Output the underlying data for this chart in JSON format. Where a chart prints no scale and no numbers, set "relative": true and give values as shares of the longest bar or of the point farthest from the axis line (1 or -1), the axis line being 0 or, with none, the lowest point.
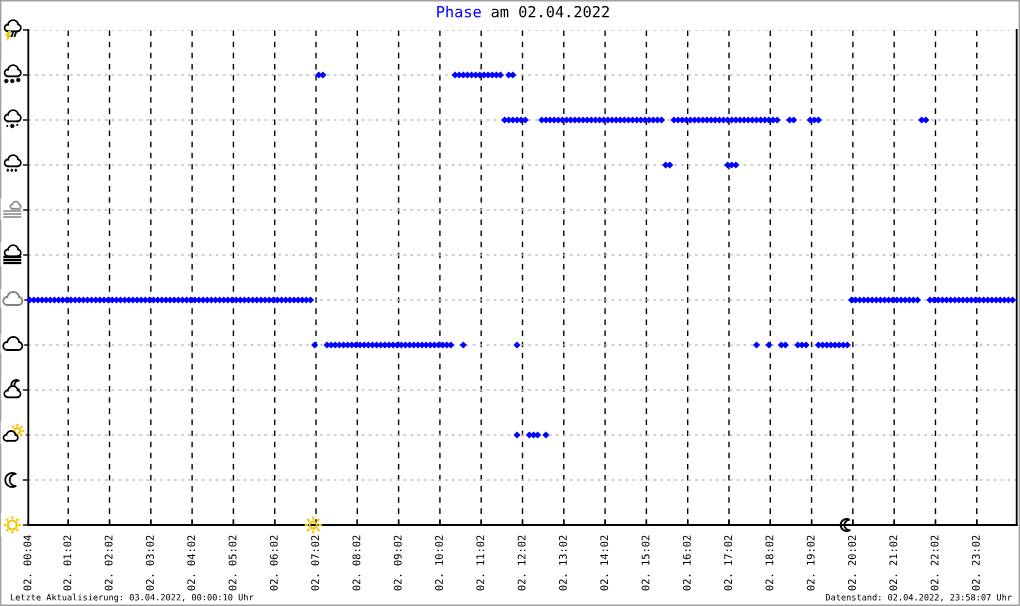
{
  "chart_data": {
    "type": "scatter",
    "title": "am 02.04.2022",
    "relative": true,
    "xlim": [
      "2022-04-02T00:04",
      "2022-04-03T00:00"
    ],
    "xticks": [
      {
        "value": "2022-04-02T00:04",
        "label": "02. 00:04"
      },
      {
        "value": "2022-04-02T01:02",
        "label": "02. 01:02"
      },
      {
        "value": "2022-04-02T02:02",
        "label": "02. 02:02"
      },
      {
        "value": "2022-04-02T03:02",
        "label": "02. 03:02"
      },
      {
        "value": "2022-04-02T04:02",
        "label": "02. 04:02"
      },
      {
        "value": "2022-04-02T05:02",
        "label": "02. 05:02"
      },
      {
        "value": "2022-04-02T06:02",
        "label": "02. 06:02"
      },
      {
        "value": "2022-04-02T07:02",
        "label": "02. 07:02"
      },
      {
        "value": "2022-04-02T08:02",
        "label": "02. 08:02"
      },
      {
        "value": "2022-04-02T09:02",
        "label": "02. 09:02"
      },
      {
        "value": "2022-04-02T10:02",
        "label": "02. 10:02"
      },
      {
        "value": "2022-04-02T11:02",
        "label": "02. 11:02"
      },
      {
        "value": "2022-04-02T12:02",
        "label": "02. 12:02"
      },
      {
        "value": "2022-04-02T13:02",
        "label": "02. 13:02"
      },
      {
        "value": "2022-04-02T14:02",
        "label": "02. 14:02"
      },
      {
        "value": "2022-04-02T15:02",
        "label": "02. 15:02"
      },
      {
        "value": "2022-04-02T16:02",
        "label": "02. 16:02"
      },
      {
        "value": "2022-04-02T17:02",
        "label": "02. 17:02"
      },
      {
        "value": "2022-04-02T18:02",
        "label": "02. 18:02"
      },
      {
        "value": "2022-04-02T19:02",
        "label": "02. 19:02"
      },
      {
        "value": "2022-04-02T20:02",
        "label": "02. 20:02"
      },
      {
        "value": "2022-04-02T21:02",
        "label": "02. 21:02"
      },
      {
        "value": "2022-04-02T22:02",
        "label": "02. 22:02"
      },
      {
        "value": "2022-04-02T23:02",
        "label": "02. 23:02"
      }
    ],
    "tick_labels": "x",
    "grid": true,
    "series": [
      {
        "name": "Phase",
        "color": "#0000ff",
        "marker": "diamond",
        "x": [
          "2022-04-02T00:06",
          "2022-04-02T00:12",
          "2022-04-02T00:18",
          "2022-04-02T00:24",
          "2022-04-02T00:30",
          "2022-04-02T00:36",
          "2022-04-02T00:42",
          "2022-04-02T00:48",
          "2022-04-02T00:54",
          "2022-04-02T01:00",
          "2022-04-02T01:06",
          "2022-04-02T01:12",
          "2022-04-02T01:18",
          "2022-04-02T01:24",
          "2022-04-02T01:30",
          "2022-04-02T01:36",
          "2022-04-02T01:42",
          "2022-04-02T01:48",
          "2022-04-02T01:54",
          "2022-04-02T02:00",
          "2022-04-02T02:06",
          "2022-04-02T02:12",
          "2022-04-02T02:18",
          "2022-04-02T02:24",
          "2022-04-02T02:30",
          "2022-04-02T02:36",
          "2022-04-02T02:42",
          "2022-04-02T02:48",
          "2022-04-02T02:54",
          "2022-04-02T03:00",
          "2022-04-02T03:06",
          "2022-04-02T03:12",
          "2022-04-02T03:18",
          "2022-04-02T03:24",
          "2022-04-02T03:30",
          "2022-04-02T03:36",
          "2022-04-02T03:42",
          "2022-04-02T03:48",
          "2022-04-02T03:54",
          "2022-04-02T04:00",
          "2022-04-02T04:06",
          "2022-04-02T04:12",
          "2022-04-02T04:18",
          "2022-04-02T04:24",
          "2022-04-02T04:30",
          "2022-04-02T04:36",
          "2022-04-02T04:42",
          "2022-04-02T04:48",
          "2022-04-02T04:54",
          "2022-04-02T05:00",
          "2022-04-02T05:06",
          "2022-04-02T05:12",
          "2022-04-02T05:18",
          "2022-04-02T05:24",
          "2022-04-02T05:30",
          "2022-04-02T05:36",
          "2022-04-02T05:42",
          "2022-04-02T05:48",
          "2022-04-02T05:54",
          "2022-04-02T06:00",
          "2022-04-02T06:06",
          "2022-04-02T06:12",
          "2022-04-02T06:18",
          "2022-04-02T06:24",
          "2022-04-02T06:30",
          "2022-04-02T06:36",
          "2022-04-02T06:42",
          "2022-04-02T06:48",
          "2022-04-02T06:54",
          "2022-04-02T07:00",
          "2022-04-02T07:06",
          "2022-04-02T07:12",
          "2022-04-02T07:18",
          "2022-04-02T07:24",
          "2022-04-02T07:30",
          "2022-04-02T07:36",
          "2022-04-02T07:42",
          "2022-04-02T07:48",
          "2022-04-02T07:54",
          "2022-04-02T08:00",
          "2022-04-02T08:06",
          "2022-04-02T08:12",
          "2022-04-02T08:18",
          "2022-04-02T08:24",
          "2022-04-02T08:30",
          "2022-04-02T08:36",
          "2022-04-02T08:42",
          "2022-04-02T08:48",
          "2022-04-02T08:54",
          "2022-04-02T09:00",
          "2022-04-02T09:06",
          "2022-04-02T09:12",
          "2022-04-02T09:18",
          "2022-04-02T09:24",
          "2022-04-02T09:30",
          "2022-04-02T09:36",
          "2022-04-02T09:42",
          "2022-04-02T09:48",
          "2022-04-02T09:54",
          "2022-04-02T10:00",
          "2022-04-02T10:06",
          "2022-04-02T10:12",
          "2022-04-02T10:18",
          "2022-04-02T10:24",
          "2022-04-02T10:30",
          "2022-04-02T10:36",
          "2022-04-02T10:42",
          "2022-04-02T10:48",
          "2022-04-02T10:54",
          "2022-04-02T11:00",
          "2022-04-02T11:06",
          "2022-04-02T11:12",
          "2022-04-02T11:18",
          "2022-04-02T11:24",
          "2022-04-02T11:30",
          "2022-04-02T11:42",
          "2022-04-02T11:48",
          "2022-04-02T10:36",
          "2022-04-02T11:54",
          "2022-04-02T11:36",
          "2022-04-02T11:42",
          "2022-04-02T11:48",
          "2022-04-02T11:54",
          "2022-04-02T12:00",
          "2022-04-02T12:06",
          "2022-04-02T11:54",
          "2022-04-02T12:12",
          "2022-04-02T12:18",
          "2022-04-02T12:24",
          "2022-04-02T12:36",
          "2022-04-02T12:30",
          "2022-04-02T12:36",
          "2022-04-02T12:42",
          "2022-04-02T12:48",
          "2022-04-02T12:54",
          "2022-04-02T13:00",
          "2022-04-02T13:06",
          "2022-04-02T13:12",
          "2022-04-02T13:18",
          "2022-04-02T13:24",
          "2022-04-02T13:30",
          "2022-04-02T13:36",
          "2022-04-02T13:42",
          "2022-04-02T13:48",
          "2022-04-02T13:54",
          "2022-04-02T14:00",
          "2022-04-02T14:06",
          "2022-04-02T14:12",
          "2022-04-02T14:18",
          "2022-04-02T14:24",
          "2022-04-02T14:30",
          "2022-04-02T14:36",
          "2022-04-02T14:42",
          "2022-04-02T14:48",
          "2022-04-02T14:54",
          "2022-04-02T15:00",
          "2022-04-02T15:06",
          "2022-04-02T15:12",
          "2022-04-02T15:18",
          "2022-04-02T15:24",
          "2022-04-02T15:30",
          "2022-04-02T15:36",
          "2022-04-02T17:00",
          "2022-04-02T17:06",
          "2022-04-02T17:12",
          "2022-04-02T15:42",
          "2022-04-02T15:48",
          "2022-04-02T15:54",
          "2022-04-02T16:00",
          "2022-04-02T16:06",
          "2022-04-02T16:12",
          "2022-04-02T16:18",
          "2022-04-02T16:24",
          "2022-04-02T16:30",
          "2022-04-02T16:36",
          "2022-04-02T16:42",
          "2022-04-02T16:48",
          "2022-04-02T16:54",
          "2022-04-02T17:00",
          "2022-04-02T17:06",
          "2022-04-02T17:12",
          "2022-04-02T17:18",
          "2022-04-02T17:24",
          "2022-04-02T17:30",
          "2022-04-02T17:36",
          "2022-04-02T17:42",
          "2022-04-02T17:48",
          "2022-04-02T17:54",
          "2022-04-02T18:00",
          "2022-04-02T18:06",
          "2022-04-02T18:12",
          "2022-04-02T18:30",
          "2022-04-02T18:36",
          "2022-04-02T19:00",
          "2022-04-02T19:06",
          "2022-04-02T19:12",
          "2022-04-02T21:42",
          "2022-04-02T21:48",
          "2022-04-02T17:42",
          "2022-04-02T18:00",
          "2022-04-02T18:18",
          "2022-04-02T18:24",
          "2022-04-02T18:42",
          "2022-04-02T18:48",
          "2022-04-02T18:54",
          "2022-04-02T19:12",
          "2022-04-02T19:18",
          "2022-04-02T19:24",
          "2022-04-02T19:30",
          "2022-04-02T19:36",
          "2022-04-02T19:42",
          "2022-04-02T19:48",
          "2022-04-02T19:54",
          "2022-04-02T20:00",
          "2022-04-02T20:06",
          "2022-04-02T20:12",
          "2022-04-02T20:18",
          "2022-04-02T20:24",
          "2022-04-02T20:30",
          "2022-04-02T20:36",
          "2022-04-02T20:42",
          "2022-04-02T20:48",
          "2022-04-02T20:54",
          "2022-04-02T21:00",
          "2022-04-02T21:06",
          "2022-04-02T21:12",
          "2022-04-02T21:18",
          "2022-04-02T21:24",
          "2022-04-02T21:30",
          "2022-04-02T21:36",
          "2022-04-02T21:54",
          "2022-04-02T22:00",
          "2022-04-02T22:06",
          "2022-04-02T22:12",
          "2022-04-02T22:18",
          "2022-04-02T22:24",
          "2022-04-02T22:30",
          "2022-04-02T22:36",
          "2022-04-02T22:42",
          "2022-04-02T22:48",
          "2022-04-02T22:54",
          "2022-04-02T23:00",
          "2022-04-02T23:06",
          "2022-04-02T23:12",
          "2022-04-02T23:18",
          "2022-04-02T23:24",
          "2022-04-02T23:30",
          "2022-04-02T23:36",
          "2022-04-02T23:42",
          "2022-04-02T23:48",
          "2022-04-02T23:54"
        ],
        "values": [
          0.5,
          0.5,
          0.5,
          0.5,
          0.5,
          0.5,
          0.5,
          0.5,
          0.5,
          0.5,
          0.5,
          0.5,
          0.5,
          0.5,
          0.5,
          0.5,
          0.5,
          0.5,
          0.5,
          0.5,
          0.5,
          0.5,
          0.5,
          0.5,
          0.5,
          0.5,
          0.5,
          0.5,
          0.5,
          0.5,
          0.5,
          0.5,
          0.5,
          0.5,
          0.5,
          0.5,
          0.5,
          0.5,
          0.5,
          0.5,
          0.5,
          0.5,
          0.5,
          0.5,
          0.5,
          0.5,
          0.5,
          0.5,
          0.5,
          0.5,
          0.5,
          0.5,
          0.5,
          0.5,
          0.5,
          0.5,
          0.5,
          0.5,
          0.5,
          0.5,
          0.5,
          0.5,
          0.5,
          0.5,
          0.5,
          0.5,
          0.5,
          0.5,
          0.5,
          0.4,
          1.0,
          1.0,
          0.4,
          0.4,
          0.4,
          0.4,
          0.4,
          0.4,
          0.4,
          0.4,
          0.4,
          0.4,
          0.4,
          0.4,
          0.4,
          0.4,
          0.4,
          0.4,
          0.4,
          0.4,
          0.4,
          0.4,
          0.4,
          0.4,
          0.4,
          0.4,
          0.4,
          0.4,
          0.4,
          0.4,
          0.4,
          0.4,
          0.4,
          1.0,
          1.0,
          1.0,
          1.0,
          1.0,
          1.0,
          1.0,
          1.0,
          1.0,
          1.0,
          1.0,
          1.0,
          1.0,
          1.0,
          0.4,
          0.4,
          0.9,
          0.9,
          0.9,
          0.9,
          0.9,
          0.9,
          0.2,
          0.2,
          0.2,
          0.2,
          0.2,
          0.9,
          0.9,
          0.9,
          0.9,
          0.9,
          0.9,
          0.9,
          0.9,
          0.9,
          0.9,
          0.9,
          0.9,
          0.9,
          0.9,
          0.9,
          0.9,
          0.9,
          0.9,
          0.9,
          0.9,
          0.9,
          0.9,
          0.9,
          0.9,
          0.9,
          0.9,
          0.9,
          0.9,
          0.9,
          0.9,
          0.8,
          0.8,
          0.8,
          0.8,
          0.8,
          0.9,
          0.9,
          0.9,
          0.9,
          0.9,
          0.9,
          0.9,
          0.9,
          0.9,
          0.9,
          0.9,
          0.9,
          0.9,
          0.9,
          0.9,
          0.9,
          0.9,
          0.9,
          0.9,
          0.9,
          0.9,
          0.9,
          0.9,
          0.9,
          0.9,
          0.9,
          0.9,
          0.9,
          0.9,
          0.9,
          0.9,
          0.9,
          0.9,
          0.4,
          0.4,
          0.4,
          0.4,
          0.4,
          0.4,
          0.4,
          0.4,
          0.4,
          0.4,
          0.4,
          0.4,
          0.4,
          0.4,
          0.4,
          0.5,
          0.5,
          0.5,
          0.5,
          0.5,
          0.5,
          0.5,
          0.5,
          0.5,
          0.5,
          0.5,
          0.5,
          0.5,
          0.5,
          0.5,
          0.5,
          0.5,
          0.5,
          0.5,
          0.5,
          0.5,
          0.5,
          0.5,
          0.5,
          0.5,
          0.5,
          0.5,
          0.5,
          0.5,
          0.5,
          0.5,
          0.5,
          0.5,
          0.5,
          0.5,
          0.5,
          0.5,
          0.5
        ]
      },
      {
        "type": "scatter",
        "color": "#f5c400",
        "x": [
          "2022-04-02T06:58"
        ],
        "values": [
          0
        ]
      },
      {
        "type": "scatter",
        "color": "#000000",
        "x": [
          "2022-04-02T19:53"
        ],
        "values": [
          0
        ]
      }
    ],
    "annotations": [
      "Letzte Aktualisierung: 03.04.2022, 00:00:10 Uhr",
      "Datenstand: 02.04.2022, 23:58:07 Uhr"
    ]
  }
}
